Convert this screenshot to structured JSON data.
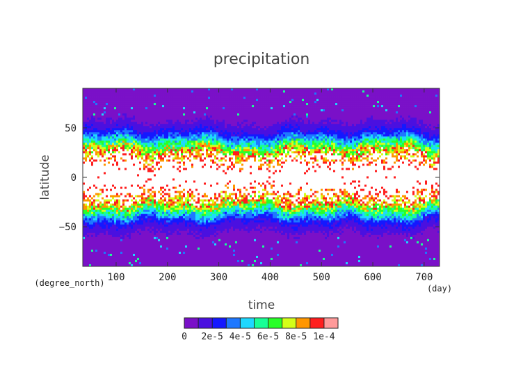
{
  "chart_data": {
    "type": "heatmap",
    "title": "precipitation",
    "xlabel": "time",
    "x_unit": "(day)",
    "ylabel": "latitude",
    "y_unit": "(degree_north)",
    "xlim": [
      35,
      730
    ],
    "ylim": [
      -90,
      90
    ],
    "x_ticks": [
      100,
      200,
      300,
      400,
      500,
      600,
      700
    ],
    "y_ticks": [
      50,
      0,
      -50
    ],
    "x_tick_labels": [
      "100",
      "200",
      "300",
      "400",
      "500",
      "600",
      "700"
    ],
    "y_tick_labels": [
      "50",
      "0",
      "−50"
    ],
    "grid": false,
    "legend": "bottom colorbar",
    "colorbar": {
      "tick_labels": [
        "0",
        "2e-5",
        "4e-5",
        "6e-5",
        "8e-5",
        "1e-4"
      ],
      "tick_values": [
        0,
        2e-05,
        4e-05,
        6e-05,
        8e-05,
        0.0001
      ],
      "levels": [
        0,
        1e-05,
        2e-05,
        3e-05,
        4e-05,
        5e-05,
        6e-05,
        7e-05,
        8e-05,
        9e-05,
        0.0001
      ],
      "colors": [
        "#7a10c8",
        "#4a10e0",
        "#1418ff",
        "#1e78ff",
        "#1ed8ff",
        "#18ff96",
        "#28ff28",
        "#d4ff18",
        "#ff9600",
        "#ff1e1e",
        "#ff9a9a"
      ],
      "over_color": "#ffffff"
    },
    "profile_lat_deg": [
      -90,
      -70,
      -55,
      -45,
      -38,
      -32,
      -27,
      -22,
      -17,
      -12,
      0,
      12,
      17,
      22,
      27,
      32,
      38,
      45,
      55,
      70,
      90
    ],
    "profile_value": [
      1.5e-06,
      3e-06,
      1e-05,
      2.2e-05,
      4.2e-05,
      6.2e-05,
      8e-05,
      9.4e-05,
      0.000103,
      0.00012,
      0.00014,
      0.00012,
      0.000103,
      9.4e-05,
      8e-05,
      6.2e-05,
      4.2e-05,
      2.2e-05,
      1e-05,
      3e-06,
      1.5e-06
    ]
  }
}
